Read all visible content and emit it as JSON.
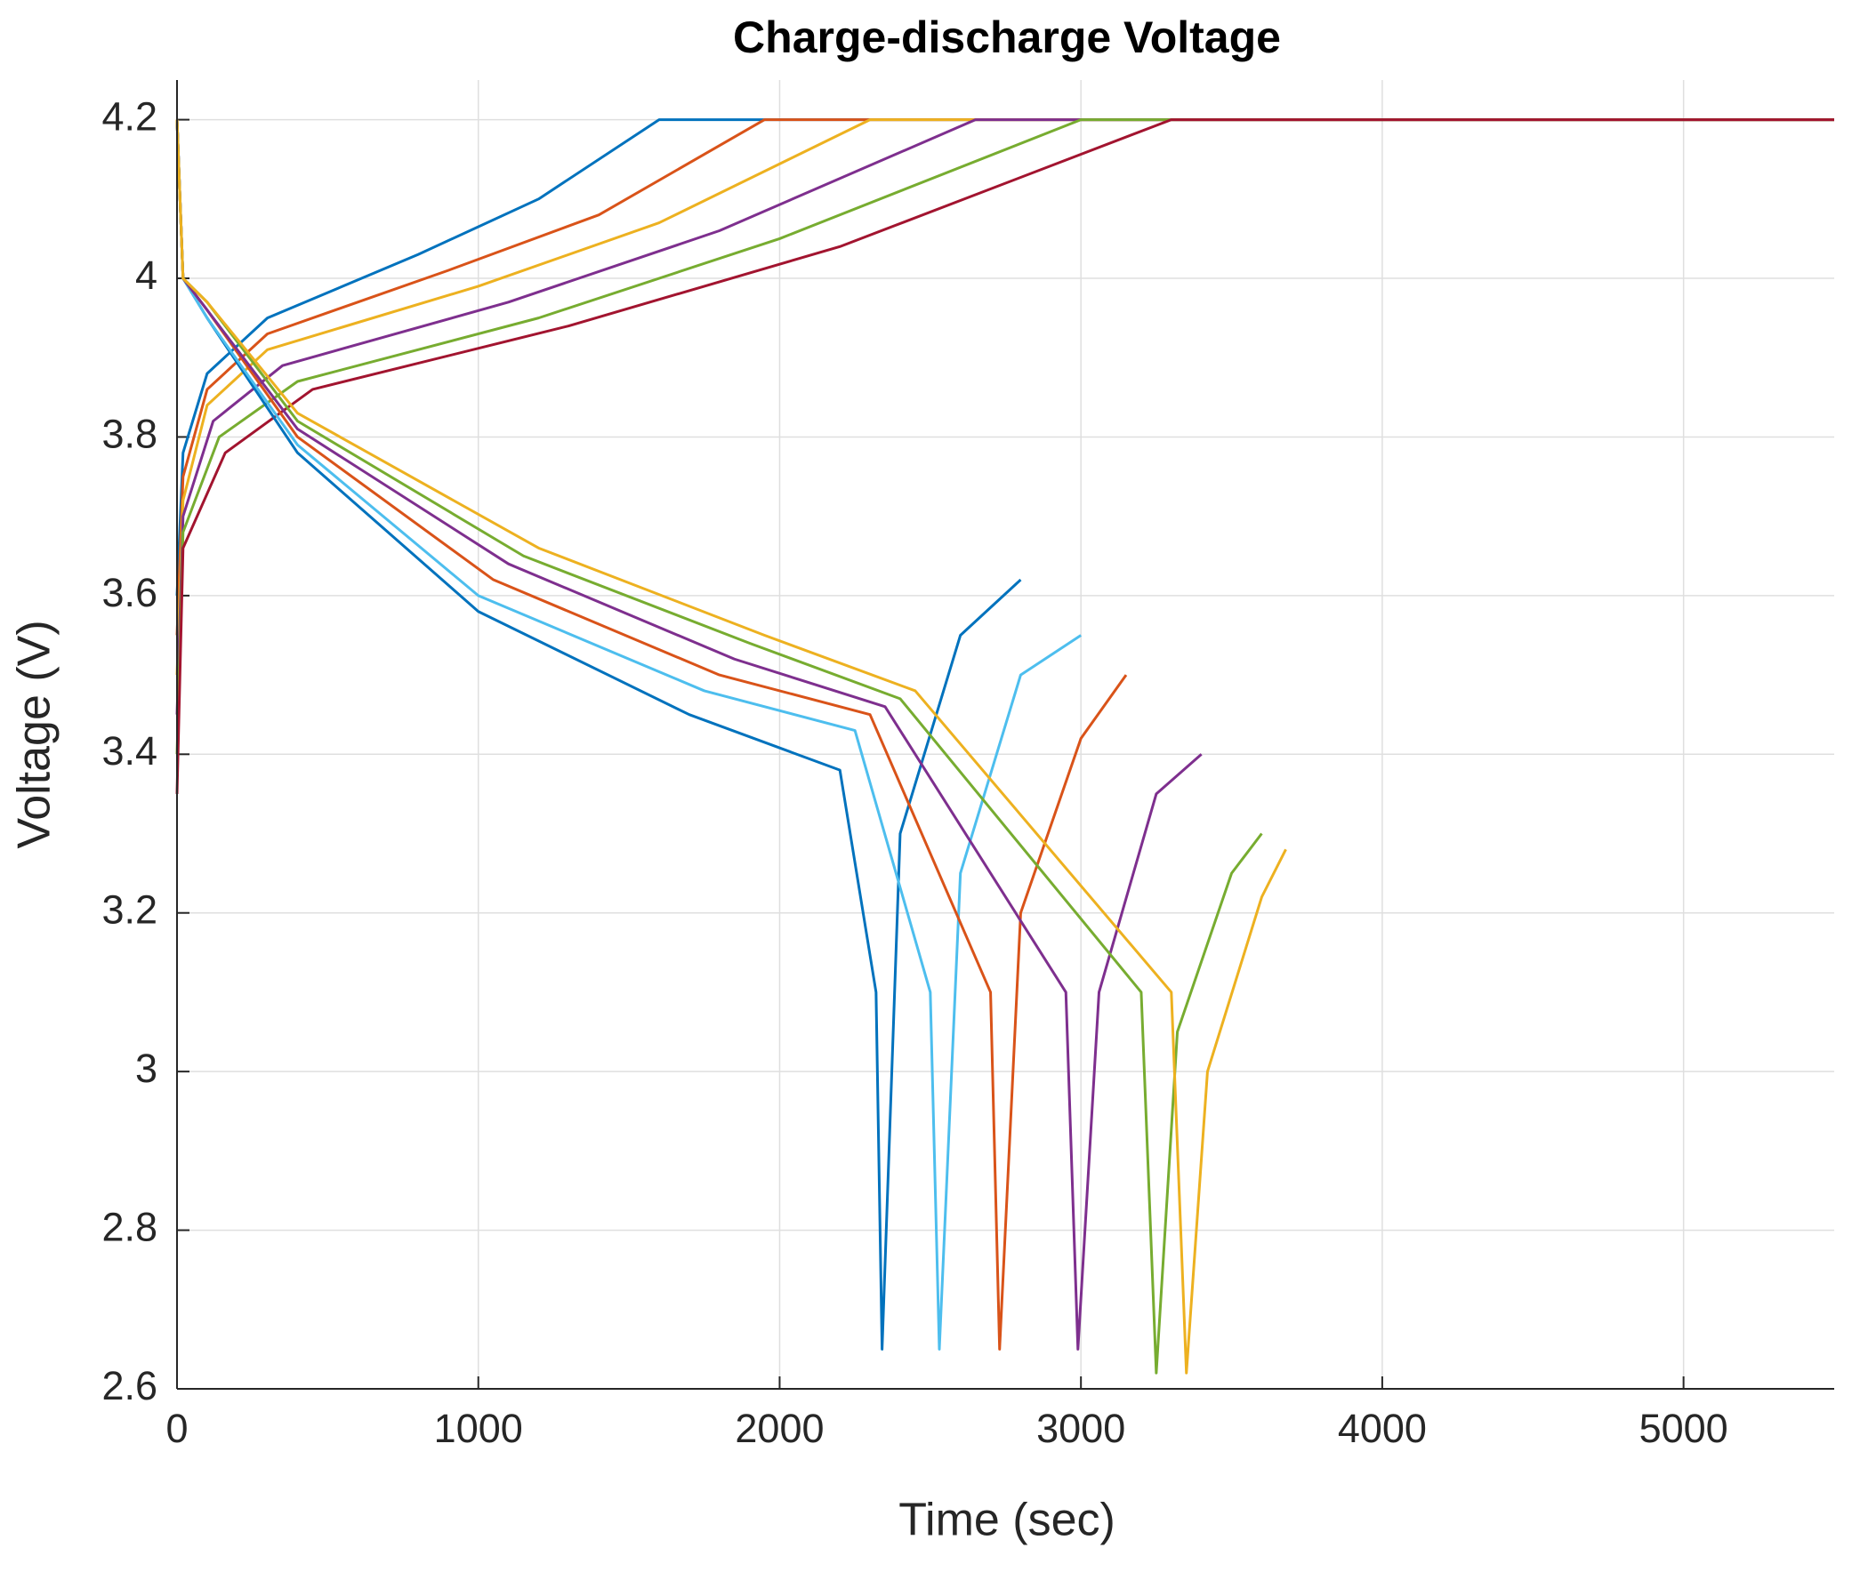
{
  "chart_data": {
    "type": "line",
    "title": "Charge-discharge Voltage",
    "xlabel": "Time (sec)",
    "ylabel": "Voltage (V)",
    "xlim": [
      0,
      5500
    ],
    "xticks": [
      0,
      1000,
      2000,
      3000,
      4000,
      5000
    ],
    "ylim": [
      2.6,
      4.25
    ],
    "yticks": [
      2.6,
      2.8,
      3,
      3.2,
      3.4,
      3.6,
      3.8,
      4,
      4.2
    ],
    "grid": true,
    "series": [
      {
        "color": "#0072bd",
        "x": [
          0,
          20,
          100,
          300,
          800,
          1200,
          1600,
          5500
        ],
        "values": [
          3.6,
          3.78,
          3.88,
          3.95,
          4.03,
          4.1,
          4.2,
          4.2
        ]
      },
      {
        "color": "#d95319",
        "x": [
          0,
          20,
          100,
          300,
          900,
          1400,
          1950,
          5500
        ],
        "values": [
          3.55,
          3.75,
          3.86,
          3.93,
          4.01,
          4.08,
          4.2,
          4.2
        ]
      },
      {
        "color": "#edb120",
        "x": [
          0,
          20,
          100,
          300,
          1000,
          1600,
          2300,
          5500
        ],
        "values": [
          3.5,
          3.72,
          3.84,
          3.91,
          3.99,
          4.07,
          4.2,
          4.2
        ]
      },
      {
        "color": "#7e2f8e",
        "x": [
          0,
          20,
          120,
          350,
          1100,
          1800,
          2650,
          5500
        ],
        "values": [
          3.45,
          3.7,
          3.82,
          3.89,
          3.97,
          4.06,
          4.2,
          4.2
        ]
      },
      {
        "color": "#77ac30",
        "x": [
          0,
          20,
          140,
          400,
          1200,
          2000,
          3000,
          5500
        ],
        "values": [
          3.4,
          3.68,
          3.8,
          3.87,
          3.95,
          4.05,
          4.2,
          4.2
        ]
      },
      {
        "color": "#a2142f",
        "x": [
          0,
          20,
          160,
          450,
          1300,
          2200,
          3300,
          5500
        ],
        "values": [
          3.35,
          3.66,
          3.78,
          3.86,
          3.94,
          4.04,
          4.2,
          4.2
        ]
      },
      {
        "color": "#0072bd",
        "x": [
          0,
          20,
          100,
          400,
          1000,
          1700,
          2200,
          2320,
          2340,
          2400,
          2600,
          2800
        ],
        "values": [
          4.2,
          4.0,
          3.95,
          3.78,
          3.58,
          3.45,
          3.38,
          3.1,
          2.65,
          3.3,
          3.55,
          3.62
        ]
      },
      {
        "color": "#4dbeee",
        "x": [
          0,
          20,
          100,
          400,
          1000,
          1750,
          2250,
          2500,
          2530,
          2600,
          2800,
          3000
        ],
        "values": [
          4.2,
          4.0,
          3.95,
          3.79,
          3.6,
          3.48,
          3.43,
          3.1,
          2.65,
          3.25,
          3.5,
          3.55
        ]
      },
      {
        "color": "#d95319",
        "x": [
          0,
          20,
          100,
          400,
          1050,
          1800,
          2300,
          2700,
          2730,
          2800,
          3000,
          3150
        ],
        "values": [
          4.2,
          4.0,
          3.96,
          3.8,
          3.62,
          3.5,
          3.45,
          3.1,
          2.65,
          3.2,
          3.42,
          3.5
        ]
      },
      {
        "color": "#7e2f8e",
        "x": [
          0,
          20,
          100,
          400,
          1100,
          1850,
          2350,
          2950,
          2990,
          3060,
          3250,
          3400
        ],
        "values": [
          4.2,
          4.0,
          3.96,
          3.81,
          3.64,
          3.52,
          3.46,
          3.1,
          2.65,
          3.1,
          3.35,
          3.4
        ]
      },
      {
        "color": "#77ac30",
        "x": [
          0,
          20,
          100,
          400,
          1150,
          1900,
          2400,
          3200,
          3250,
          3320,
          3500,
          3600
        ],
        "values": [
          4.2,
          4.0,
          3.97,
          3.82,
          3.65,
          3.54,
          3.47,
          3.1,
          2.62,
          3.05,
          3.25,
          3.3
        ]
      },
      {
        "color": "#edb120",
        "x": [
          0,
          20,
          100,
          400,
          1200,
          1950,
          2450,
          3300,
          3350,
          3420,
          3600,
          3680
        ],
        "values": [
          4.2,
          4.0,
          3.97,
          3.83,
          3.66,
          3.55,
          3.48,
          3.1,
          2.62,
          3.0,
          3.22,
          3.28
        ]
      }
    ]
  }
}
